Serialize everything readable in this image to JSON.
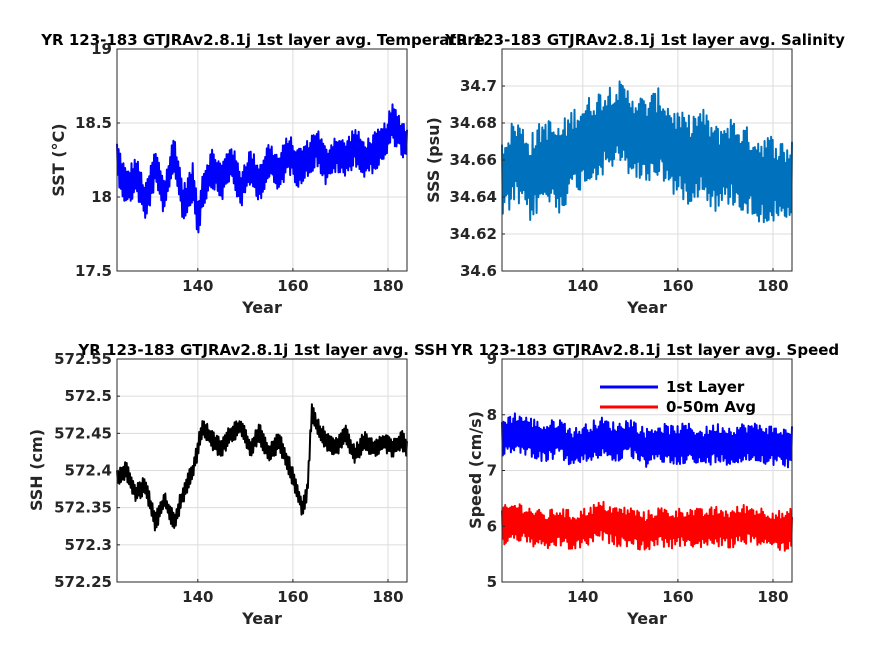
{
  "chart_data": [
    {
      "type": "line",
      "title": "YR 123-183 GTJRAv2.8.1j 1st layer avg. Temperature",
      "xlabel": "Year",
      "ylabel": "SST (°C)",
      "xlim": [
        123,
        184
      ],
      "ylim": [
        17.5,
        19
      ],
      "xticks": [
        140,
        160,
        180
      ],
      "xtick_labels": [
        "140",
        "160",
        "180"
      ],
      "yticks": [
        17.5,
        18,
        18.5,
        19
      ],
      "ytick_labels": [
        "17.5",
        "18",
        "18.5",
        "19"
      ],
      "grid": true,
      "series": [
        {
          "color": "#0000ff",
          "x": [
            123,
            125,
            127,
            129,
            131,
            133,
            135,
            137,
            139,
            140,
            141,
            143,
            145,
            147,
            149,
            151,
            153,
            155,
            157,
            159,
            161,
            163,
            165,
            167,
            169,
            171,
            173,
            175,
            177,
            179,
            181,
            183,
            184
          ],
          "values": [
            18.25,
            18.05,
            18.15,
            17.95,
            18.2,
            18.0,
            18.3,
            17.95,
            18.1,
            17.85,
            18.05,
            18.2,
            18.1,
            18.25,
            18.05,
            18.2,
            18.1,
            18.25,
            18.15,
            18.3,
            18.2,
            18.25,
            18.35,
            18.2,
            18.3,
            18.25,
            18.35,
            18.25,
            18.3,
            18.35,
            18.5,
            18.4,
            18.35
          ]
        }
      ]
    },
    {
      "type": "line",
      "title": "YR 123-183 GTJRAv2.8.1j 1st layer avg. Salinity",
      "xlabel": "Year",
      "ylabel": "SSS (psu)",
      "xlim": [
        123,
        184
      ],
      "ylim": [
        34.6,
        34.72
      ],
      "xticks": [
        140,
        160,
        180
      ],
      "xtick_labels": [
        "140",
        "160",
        "180"
      ],
      "yticks": [
        34.6,
        34.62,
        34.64,
        34.66,
        34.68,
        34.7
      ],
      "ytick_labels": [
        "34.6",
        "34.62",
        "34.64",
        "34.66",
        "34.68",
        "34.7"
      ],
      "grid": true,
      "series": [
        {
          "color": "#0072bd",
          "x": [
            123,
            126,
            129,
            132,
            135,
            138,
            141,
            144,
            147,
            150,
            153,
            156,
            159,
            162,
            165,
            168,
            171,
            174,
            177,
            180,
            183,
            184
          ],
          "values": [
            34.65,
            34.66,
            34.65,
            34.66,
            34.655,
            34.665,
            34.67,
            34.675,
            34.68,
            34.675,
            34.67,
            34.675,
            34.665,
            34.66,
            34.665,
            34.655,
            34.66,
            34.655,
            34.65,
            34.65,
            34.645,
            34.65
          ]
        }
      ]
    },
    {
      "type": "line",
      "title": "YR 123-183 GTJRAv2.8.1j 1st layer avg. SSH",
      "xlabel": "Year",
      "ylabel": "SSH (cm)",
      "xlim": [
        123,
        184
      ],
      "ylim": [
        572.25,
        572.55
      ],
      "xticks": [
        140,
        160,
        180
      ],
      "xtick_labels": [
        "140",
        "160",
        "180"
      ],
      "yticks": [
        572.25,
        572.3,
        572.35,
        572.4,
        572.45,
        572.5,
        572.55
      ],
      "ytick_labels": [
        "572.25",
        "572.3",
        "572.35",
        "572.4",
        "572.45",
        "572.5",
        "572.55"
      ],
      "grid": true,
      "series": [
        {
          "color": "#000000",
          "x": [
            123,
            125,
            127,
            129,
            131,
            133,
            135,
            137,
            139,
            141,
            143,
            145,
            147,
            149,
            151,
            153,
            155,
            157,
            159,
            161,
            162,
            163,
            164,
            165,
            167,
            169,
            171,
            173,
            175,
            177,
            179,
            181,
            183,
            184
          ],
          "values": [
            572.39,
            572.4,
            572.37,
            572.38,
            572.33,
            572.36,
            572.33,
            572.37,
            572.4,
            572.46,
            572.44,
            572.43,
            572.45,
            572.46,
            572.43,
            572.45,
            572.42,
            572.44,
            572.41,
            572.37,
            572.35,
            572.37,
            572.48,
            572.46,
            572.44,
            572.43,
            572.45,
            572.42,
            572.44,
            572.43,
            572.44,
            572.43,
            572.44,
            572.43
          ]
        }
      ]
    },
    {
      "type": "line",
      "title": "YR 123-183 GTJRAv2.8.1j 1st layer avg. Speed",
      "xlabel": "Year",
      "ylabel": "Speed (cm/s)",
      "xlim": [
        123,
        184
      ],
      "ylim": [
        5,
        9
      ],
      "xticks": [
        140,
        160,
        180
      ],
      "xtick_labels": [
        "140",
        "160",
        "180"
      ],
      "yticks": [
        5,
        6,
        7,
        8,
        9
      ],
      "ytick_labels": [
        "5",
        "6",
        "7",
        "8",
        "9"
      ],
      "grid": true,
      "legend_position": "top-right",
      "series": [
        {
          "name": "1st Layer",
          "color": "#0000ff",
          "x": [
            123,
            126,
            129,
            132,
            135,
            138,
            141,
            144,
            147,
            150,
            153,
            156,
            159,
            162,
            165,
            168,
            171,
            174,
            177,
            180,
            183,
            184
          ],
          "values": [
            7.6,
            7.7,
            7.6,
            7.5,
            7.6,
            7.4,
            7.5,
            7.6,
            7.5,
            7.6,
            7.4,
            7.5,
            7.45,
            7.5,
            7.4,
            7.5,
            7.45,
            7.5,
            7.5,
            7.45,
            7.4,
            7.5
          ]
        },
        {
          "name": "0-50m Avg",
          "color": "#ff0000",
          "x": [
            123,
            126,
            129,
            132,
            135,
            138,
            141,
            144,
            147,
            150,
            153,
            156,
            159,
            162,
            165,
            168,
            171,
            174,
            177,
            180,
            183,
            184
          ],
          "values": [
            6.0,
            6.1,
            6.0,
            5.9,
            6.0,
            5.9,
            6.0,
            6.1,
            6.0,
            6.0,
            5.9,
            6.0,
            5.95,
            6.0,
            5.95,
            6.0,
            5.95,
            6.05,
            6.0,
            5.95,
            5.9,
            6.0
          ]
        }
      ]
    }
  ]
}
